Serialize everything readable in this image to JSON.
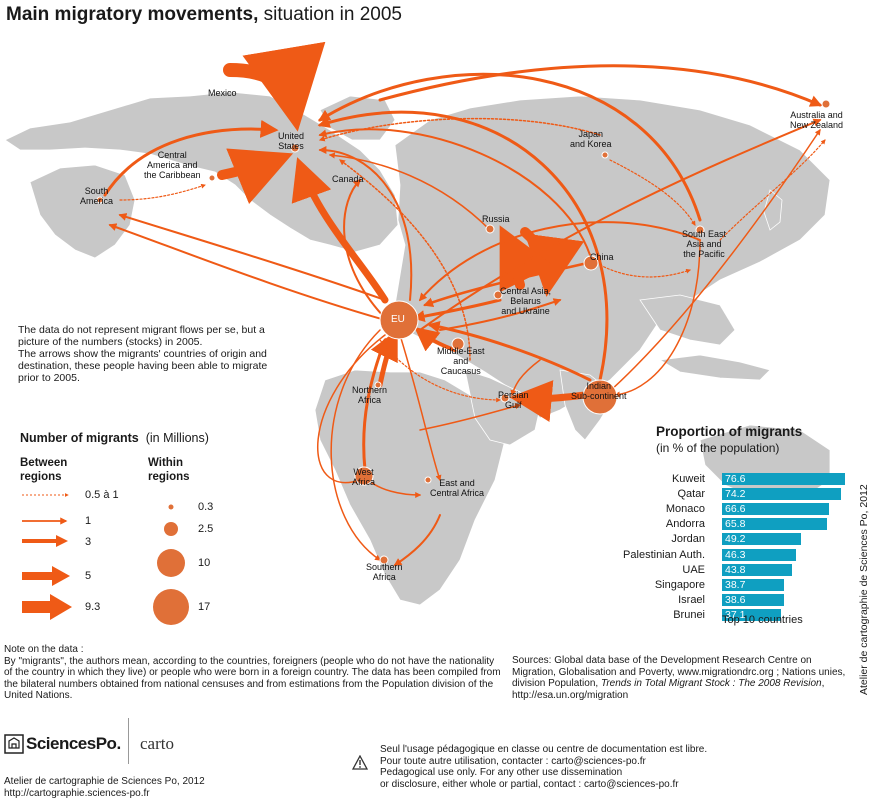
{
  "title": {
    "bold": "Main migratory movements,",
    "rest": " situation in 2005"
  },
  "colors": {
    "flow": "#ef5a16",
    "land": "#c8c8c8",
    "circle": "#e07038",
    "bar": "#0f9fc1"
  },
  "map_labels": {
    "mexico": "Mexico",
    "united_states": "United\nStates",
    "central_america": "Central\nAmerica and\nthe Caribbean",
    "south_america": "South\nAmerica",
    "canada": "Canada",
    "russia": "Russia",
    "japan_korea": "Japan\nand Korea",
    "australia_nz": "Australia and\nNew Zealand",
    "south_east_asia": "South East\nAsia and\nthe Pacific",
    "china": "China",
    "central_asia": "Central Asia,\nBelarus\nand Ukraine",
    "eu": "EU",
    "middle_east": "Middle-East\nand\nCaucasus",
    "persian_gulf": "Persian\nGulf",
    "indian_sub": "Indian\nSub-continent",
    "north_africa": "Northern\nAfrica",
    "west_africa": "West\nAfrica",
    "east_africa": "East and\nCentral Africa",
    "southern_africa": "Southern\nAfrica"
  },
  "intro": [
    "The data do not represent migrant flows per se, but a picture of the numbers (stocks) in 2005.",
    "The arrows show the migrants' countries of origin and destination, these people having been able to migrate prior to 2005."
  ],
  "legend": {
    "title": "Number of migrants",
    "unit": "(in Millions)",
    "between_heading": "Between\nregions",
    "within_heading": "Within\nregions",
    "between_values": [
      "0.5 à 1",
      "1",
      "3",
      "5",
      "9.3"
    ],
    "within_values": [
      "0.3",
      "2.5",
      "10",
      "17"
    ]
  },
  "bar_chart": {
    "title": "Proportion of migrants",
    "subtitle": "(in % of the population)",
    "caption": "Top 10 countries",
    "max": 80,
    "items": [
      {
        "country": "Kuweit",
        "value": "76.6"
      },
      {
        "country": "Qatar",
        "value": "74.2"
      },
      {
        "country": "Monaco",
        "value": "66.6"
      },
      {
        "country": "Andorra",
        "value": "65.8"
      },
      {
        "country": "Jordan",
        "value": "49.2"
      },
      {
        "country": "Palestinian Auth.",
        "value": "46.3"
      },
      {
        "country": "UAE",
        "value": "43.8"
      },
      {
        "country": "Singapore",
        "value": "38.7"
      },
      {
        "country": "Israel",
        "value": "38.6"
      },
      {
        "country": "Brunei",
        "value": "37.1"
      }
    ]
  },
  "vertical_credit": "Atelier de cartographie de Sciences Po, 2012",
  "note": {
    "heading": "Note on the data :",
    "body": "By \"migrants\", the authors mean, according to the countries, foreigners (people who do not have the nationality of the country in which they live) or people who were born in a foreign country. The data has been compiled from the bilateral numbers obtained from national censuses and from estimations from the Population division of the United Nations."
  },
  "sources": {
    "part1": "Sources: Global data base of the Development Research Centre on Migration, Globalisation and Poverty, www.migrationdrc.org ; Nations unies, division Population, ",
    "italic": "Trends in Total  Migrant Stock : The 2008 Revision",
    "part2": ", http://esa.un.org/migration"
  },
  "footer": {
    "logo": "SciencesPo.",
    "carto": "carto",
    "atelier_line1": "Atelier de cartographie de Sciences Po, 2012",
    "atelier_line2": "http://cartographie.sciences-po.fr",
    "rights_fr1": "Seul l'usage pédagogique en classe ou centre de documentation est libre.",
    "rights_fr2": "Pour toute autre utilisation, contacter : carto@sciences-po.fr",
    "rights_en1": "Pedagogical use only. For any other use dissemination",
    "rights_en2": "or disclosure, either whole or partial, contact : carto@sciences-po.fr"
  }
}
